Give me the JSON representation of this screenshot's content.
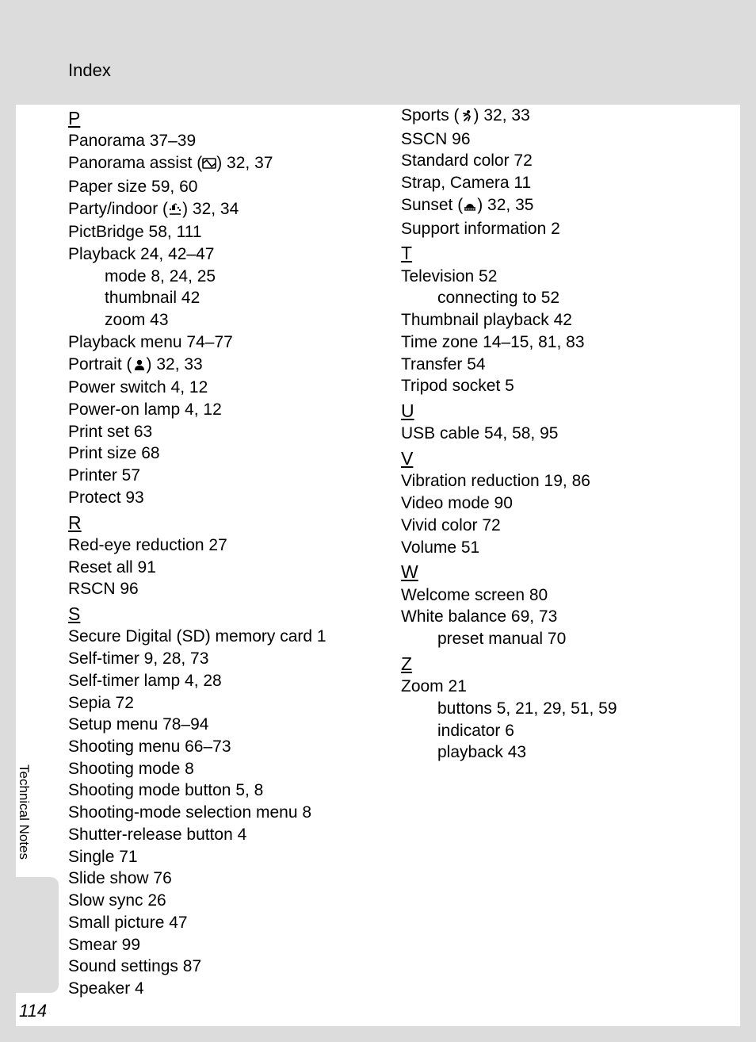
{
  "colors": {
    "band": "#dcdcdc",
    "page": "#ffffff",
    "text": "#000000"
  },
  "header": {
    "title": "Index"
  },
  "side_label": "Technical Notes",
  "page_number": "114",
  "fontsize": {
    "body": 21,
    "letter": 23,
    "header": 22,
    "side": 17,
    "pagenum": 22
  },
  "columns": [
    [
      {
        "t": "letter",
        "v": "P"
      },
      {
        "t": "entry",
        "v": "Panorama 37–39"
      },
      {
        "t": "entry-icon",
        "pre": "Panorama assist (",
        "icon": "panorama",
        "post": ") 32, 37"
      },
      {
        "t": "entry",
        "v": "Paper size 59, 60"
      },
      {
        "t": "entry-icon",
        "pre": "Party/indoor (",
        "icon": "party",
        "post": ") 32, 34"
      },
      {
        "t": "entry",
        "v": "PictBridge 58, 111"
      },
      {
        "t": "entry",
        "v": "Playback 24, 42–47"
      },
      {
        "t": "sub",
        "v": "mode 8, 24, 25"
      },
      {
        "t": "sub",
        "v": "thumbnail 42"
      },
      {
        "t": "sub",
        "v": "zoom 43"
      },
      {
        "t": "entry",
        "v": "Playback menu 74–77"
      },
      {
        "t": "entry-icon",
        "pre": "Portrait (",
        "icon": "portrait",
        "post": ") 32, 33"
      },
      {
        "t": "entry",
        "v": "Power switch 4, 12"
      },
      {
        "t": "entry",
        "v": "Power-on lamp 4, 12"
      },
      {
        "t": "entry",
        "v": "Print set 63"
      },
      {
        "t": "entry",
        "v": "Print size 68"
      },
      {
        "t": "entry",
        "v": "Printer 57"
      },
      {
        "t": "entry",
        "v": "Protect 93"
      },
      {
        "t": "letter",
        "v": "R"
      },
      {
        "t": "entry",
        "v": "Red-eye reduction 27"
      },
      {
        "t": "entry",
        "v": "Reset all 91"
      },
      {
        "t": "entry",
        "v": "RSCN 96"
      },
      {
        "t": "letter",
        "v": "S"
      },
      {
        "t": "entry",
        "v": "Secure Digital (SD) memory card 1"
      },
      {
        "t": "entry",
        "v": "Self-timer 9, 28, 73"
      },
      {
        "t": "entry",
        "v": "Self-timer lamp 4, 28"
      },
      {
        "t": "entry",
        "v": "Sepia 72"
      },
      {
        "t": "entry",
        "v": "Setup menu 78–94"
      },
      {
        "t": "entry",
        "v": "Shooting menu 66–73"
      },
      {
        "t": "entry",
        "v": "Shooting mode 8"
      },
      {
        "t": "entry",
        "v": "Shooting mode button 5, 8"
      },
      {
        "t": "entry",
        "v": "Shooting-mode selection menu 8"
      },
      {
        "t": "entry",
        "v": "Shutter-release button 4"
      },
      {
        "t": "entry",
        "v": "Single 71"
      },
      {
        "t": "entry",
        "v": "Slide show 76"
      },
      {
        "t": "entry",
        "v": "Slow sync 26"
      },
      {
        "t": "entry",
        "v": "Small picture 47"
      },
      {
        "t": "entry",
        "v": "Smear 99"
      },
      {
        "t": "entry",
        "v": "Sound settings 87"
      },
      {
        "t": "entry",
        "v": "Speaker 4"
      }
    ],
    [
      {
        "t": "entry-icon",
        "pre": "Sports (",
        "icon": "sports",
        "post": ") 32, 33"
      },
      {
        "t": "entry",
        "v": "SSCN 96"
      },
      {
        "t": "entry",
        "v": "Standard color 72"
      },
      {
        "t": "entry",
        "v": "Strap, Camera 11"
      },
      {
        "t": "entry-icon",
        "pre": "Sunset (",
        "icon": "sunset",
        "post": ") 32, 35"
      },
      {
        "t": "entry",
        "v": "Support information 2"
      },
      {
        "t": "letter",
        "v": "T"
      },
      {
        "t": "entry",
        "v": "Television 52"
      },
      {
        "t": "sub",
        "v": "connecting to 52"
      },
      {
        "t": "entry",
        "v": "Thumbnail playback 42"
      },
      {
        "t": "entry",
        "v": "Time zone 14–15, 81, 83"
      },
      {
        "t": "entry",
        "v": "Transfer 54"
      },
      {
        "t": "entry",
        "v": "Tripod socket 5"
      },
      {
        "t": "letter",
        "v": "U"
      },
      {
        "t": "entry",
        "v": "USB cable 54, 58, 95"
      },
      {
        "t": "letter",
        "v": "V"
      },
      {
        "t": "entry",
        "v": "Vibration reduction 19, 86"
      },
      {
        "t": "entry",
        "v": "Video mode 90"
      },
      {
        "t": "entry",
        "v": "Vivid color 72"
      },
      {
        "t": "entry",
        "v": "Volume 51"
      },
      {
        "t": "letter",
        "v": "W"
      },
      {
        "t": "entry",
        "v": "Welcome screen 80"
      },
      {
        "t": "entry",
        "v": "White balance 69, 73"
      },
      {
        "t": "sub",
        "v": "preset manual 70"
      },
      {
        "t": "letter",
        "v": "Z"
      },
      {
        "t": "entry",
        "v": "Zoom 21"
      },
      {
        "t": "sub",
        "v": "buttons 5, 21, 29, 51, 59"
      },
      {
        "t": "sub",
        "v": "indicator 6"
      },
      {
        "t": "sub",
        "v": "playback 43"
      }
    ]
  ],
  "icons": {
    "panorama": "<svg width='18' height='16' viewBox='0 0 18 16'><rect x='1' y='2' width='16' height='12' rx='1' fill='none' stroke='#000' stroke-width='1.6'/><path d='M1 8 L6 4 L12 12 L17 8' fill='none' stroke='#000' stroke-width='1.6'/></svg>",
    "party": "<svg width='18' height='16' viewBox='0 0 18 16'><rect x='5' y='3' width='4' height='6' fill='#000'/><path d='M7 3 Q9 0 11 2' fill='none' stroke='#000' stroke-width='1.4'/><path d='M2 14 L16 14' stroke='#000' stroke-width='1.6'/><circle cx='13' cy='6' r='1.2' fill='#000'/><circle cx='15' cy='9' r='1.2' fill='#000'/><circle cx='3' cy='8' r='1.2' fill='#000'/></svg>",
    "portrait": "<svg width='18' height='16' viewBox='0 0 18 16'><circle cx='9' cy='5' r='3.2' fill='#000'/><path d='M3 15 Q3 9 9 9 Q15 9 15 15 Z' fill='#000'/></svg>",
    "sports": "<svg width='18' height='16' viewBox='0 0 18 16'><circle cx='11' cy='3' r='2' fill='#000'/><path d='M6 8 L10 6 L13 9 L11 14 M10 6 L5 5 M10 10 L6 14' stroke='#000' stroke-width='1.8' fill='none' stroke-linecap='round'/></svg>",
    "sunset": "<svg width='18' height='16' viewBox='0 0 18 16'><path d='M2 11 L16 11' stroke='#000' stroke-width='1.6'/><path d='M4 11 A5 5 0 0 1 14 11 Z' fill='#000'/><path d='M2 14 L16 14 M3 14 L3 12 M6 14 L6 12 M9 14 L9 12 M12 14 L12 12 M15 14 L15 12' stroke='#000' stroke-width='1.2'/></svg>"
  }
}
